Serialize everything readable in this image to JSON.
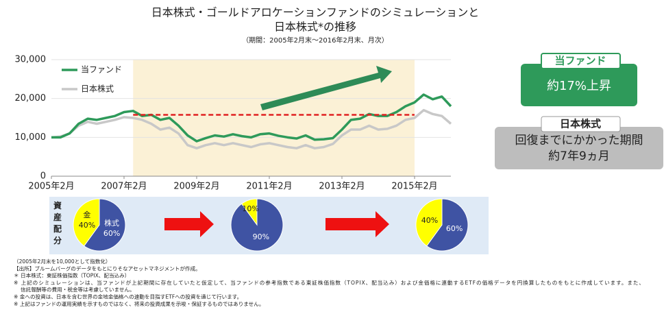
{
  "chart_data": [
    {
      "type": "line",
      "title": [
        "日本株式・ゴールドアロケーションファンドのシミュレーションと",
        "日本株式*の推移"
      ],
      "subtitle": "（期間：2005年2月末～2016年2月末、月次）",
      "x": [
        "2005-02",
        "2005-05",
        "2005-08",
        "2005-11",
        "2006-02",
        "2006-05",
        "2006-08",
        "2006-11",
        "2007-02",
        "2007-05",
        "2007-08",
        "2007-11",
        "2008-02",
        "2008-05",
        "2008-08",
        "2008-11",
        "2009-02",
        "2009-05",
        "2009-08",
        "2009-11",
        "2010-02",
        "2010-05",
        "2010-08",
        "2010-11",
        "2011-02",
        "2011-05",
        "2011-08",
        "2011-11",
        "2012-02",
        "2012-05",
        "2012-08",
        "2012-11",
        "2013-02",
        "2013-05",
        "2013-08",
        "2013-11",
        "2014-02",
        "2014-05",
        "2014-08",
        "2014-11",
        "2015-02",
        "2015-05",
        "2015-08",
        "2015-11",
        "2016-02"
      ],
      "series": [
        {
          "name": "当ファンド",
          "color": "#2e9a5a",
          "values": [
            10000,
            10000,
            11000,
            13500,
            14800,
            14500,
            15000,
            15500,
            16500,
            16800,
            15500,
            15800,
            14500,
            15000,
            13000,
            10500,
            9000,
            9800,
            10500,
            10200,
            10800,
            10300,
            10000,
            10800,
            11000,
            10400,
            10000,
            9700,
            10500,
            9400,
            9500,
            9800,
            12000,
            14500,
            14800,
            16000,
            15500,
            15500,
            16500,
            18000,
            19000,
            21000,
            19800,
            20500,
            18000
          ]
        },
        {
          "name": "日本株式",
          "color": "#c8c8c8",
          "values": [
            10000,
            10200,
            11000,
            13000,
            14000,
            13500,
            14000,
            14500,
            15200,
            15000,
            14500,
            13500,
            12000,
            12500,
            11000,
            8000,
            7200,
            8000,
            8500,
            8000,
            8500,
            8000,
            7500,
            8200,
            8500,
            8000,
            7500,
            7200,
            8000,
            7200,
            7500,
            8300,
            10500,
            12000,
            12000,
            13000,
            12000,
            12200,
            13000,
            14500,
            15000,
            17000,
            16000,
            15500,
            13500
          ]
        }
      ],
      "xlim": [
        "2005-02",
        "2016-02"
      ],
      "xticks": [
        {
          "value": "2005-02",
          "label": "2005年2月"
        },
        {
          "value": "2007-02",
          "label": "2007年2月"
        },
        {
          "value": "2009-02",
          "label": "2009年2月"
        },
        {
          "value": "2011-02",
          "label": "2011年2月"
        },
        {
          "value": "2013-02",
          "label": "2013年2月"
        },
        {
          "value": "2015-02",
          "label": "2015年2月"
        }
      ],
      "ylim": [
        0,
        30000
      ],
      "yticks": [
        0,
        {
          "value": 10000,
          "label": "10,000"
        },
        {
          "value": 20000,
          "label": "20,000"
        },
        {
          "value": 30000,
          "label": "30,000"
        }
      ],
      "highlight": {
        "x": [
          "2007-05",
          "2015-02"
        ],
        "color": "#fbf1d6"
      },
      "reference_line": {
        "y": 15800,
        "color": "#e02020"
      },
      "legend": "upper-left"
    },
    {
      "type": "pie",
      "categories": [
        "株式",
        "金"
      ],
      "values": [
        60,
        40
      ],
      "value_labels": [
        "60%",
        "40%"
      ],
      "colors": [
        "#3f53a3",
        "#ffff00"
      ]
    },
    {
      "type": "pie",
      "values": [
        90,
        10
      ],
      "value_labels": [
        "90%",
        "10%"
      ],
      "colors": [
        "#3f53a3",
        "#ffff00"
      ]
    },
    {
      "type": "pie",
      "values": [
        60,
        40
      ],
      "value_labels": [
        "60%",
        "40%"
      ],
      "colors": [
        "#3f53a3",
        "#ffff00"
      ]
    }
  ],
  "allocation_label": "資産配分",
  "panels": [
    {
      "tab": "当ファンド",
      "lines": [
        "約17%上昇"
      ]
    },
    {
      "tab": "日本株式",
      "lines": [
        "回復までにかかった期間",
        "約7年9ヵ月"
      ]
    }
  ],
  "notes": [
    "（2005年2月末を10,000として指数化）",
    "【出所】ブルームバーグのデータをもとにりそなアセットマネジメントが作成。",
    "＊ 日本株式：東証株価指数（TOPIX、配当込み）",
    "※ 上記のシミュレーションは、当ファンドが上記期間に存在していたと仮定して、当ファンドの参考指数である東証株価指数（TOPIX、配当込み）および金価格に連動するETFの価格データを円換算したものをもとに作成しています。また、",
    "　 信託報酬等の費用・税金等は考慮していません。",
    "※ 金への投資は、日本を含む世界の金地金価格への連動を目指すETFへの投資を通じて行います。",
    "※ 上記はファンドの運用実績を示すものではなく、将来の投資成果を示唆・保証するものではありません。"
  ]
}
